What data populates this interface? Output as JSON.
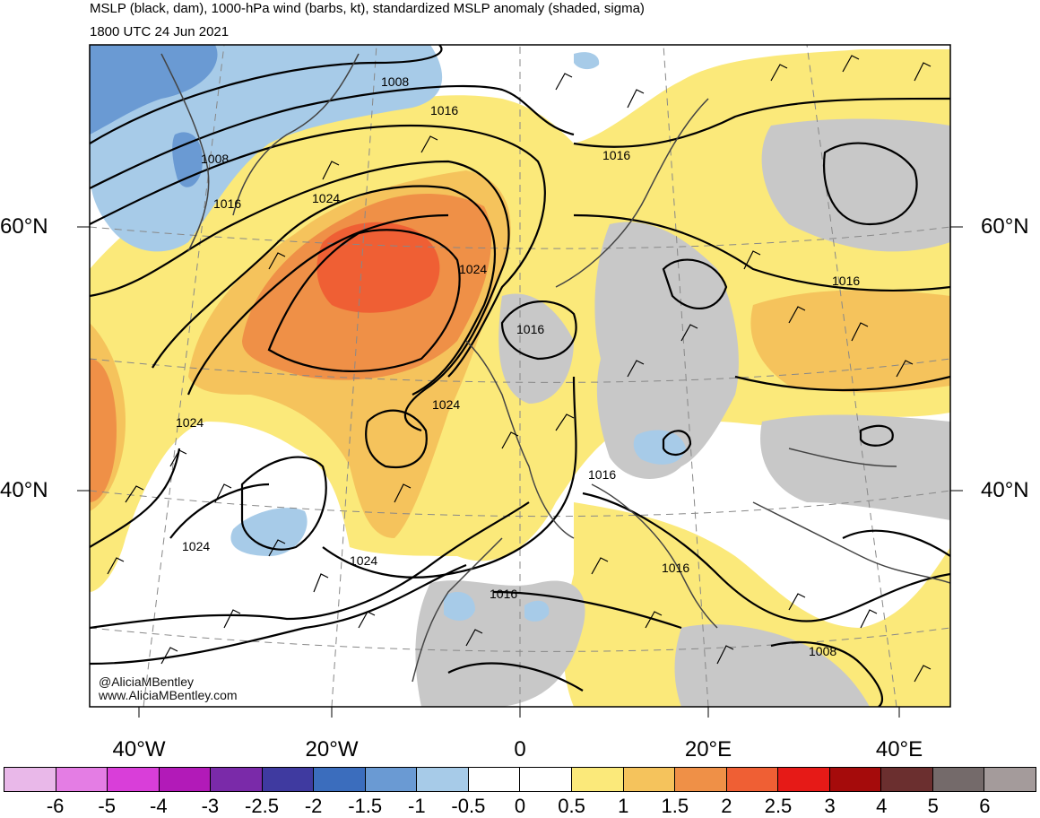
{
  "header": {
    "title": "MSLP (black, dam), 1000-hPa wind (barbs, kt), standardized MSLP anomaly (shaded, sigma)",
    "valid_time": "1800 UTC 24 Jun 2021"
  },
  "credits": {
    "handle": "@AliciaMBentley",
    "website": "www.AliciaMBentley.com"
  },
  "axes": {
    "lat_left": [
      "60°N",
      "40°N"
    ],
    "lat_right": [
      "60°N",
      "40°N"
    ],
    "lon": [
      "40°W",
      "20°W",
      "0",
      "20°E",
      "40°E"
    ]
  },
  "isobar_labels": [
    "1008",
    "1008",
    "1016",
    "1016",
    "1016",
    "1024",
    "1024",
    "1024",
    "1024",
    "1016",
    "1024",
    "1024",
    "1016",
    "1016",
    "1016",
    "1016",
    "1008"
  ],
  "colorbar": {
    "ticks": [
      "-6",
      "-5",
      "-4",
      "-3",
      "-2.5",
      "-2",
      "-1.5",
      "-1",
      "-0.5",
      "0",
      "0.5",
      "1",
      "1.5",
      "2",
      "2.5",
      "3",
      "4",
      "5",
      "6"
    ],
    "colors": [
      "#e9b8e9",
      "#e47de4",
      "#d93ed9",
      "#b21ab8",
      "#7a2aa9",
      "#3f3aa0",
      "#3b6dbd",
      "#6a9ad3",
      "#a7cbe8",
      "#ffffff",
      "#ffffff",
      "#fbe97a",
      "#f5c35c",
      "#ef9047",
      "#ef5f34",
      "#e61a17",
      "#a50b0b",
      "#6b2f2f",
      "#746a6a",
      "#a49b9b"
    ]
  },
  "colors": {
    "land_gray": "#c8c8c8",
    "anomaly_neg_light": "#a7cbe8",
    "anomaly_neg_mid": "#6a9ad3",
    "anomaly_pos_light": "#fbe97a",
    "anomaly_pos_mid": "#f5c35c",
    "anomaly_pos_high": "#ef9047",
    "anomaly_pos_max": "#ef5f34"
  }
}
